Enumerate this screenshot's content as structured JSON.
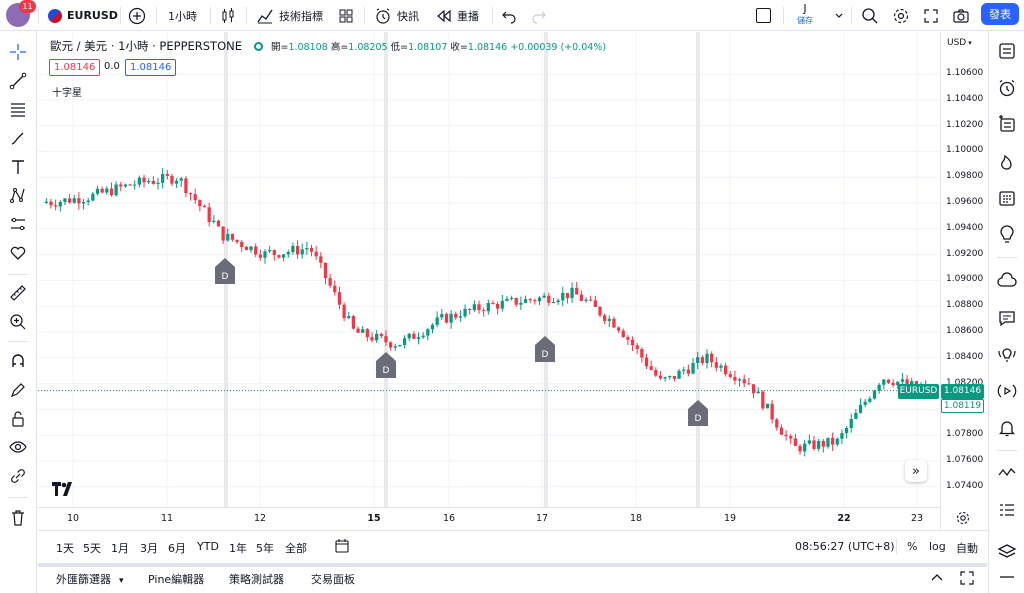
{
  "topbar": {
    "notification_count": "11",
    "symbol": "EURUSD",
    "interval": "1小時",
    "indicators_label": "技術指標",
    "alerts_label": "快訊",
    "replay_label": "重播",
    "layout_name": "J",
    "save_label": "儲存",
    "publish_label": "發表"
  },
  "legend": {
    "title": "歐元 / 美元 · 1小時 · PEPPERSTONE",
    "open_label": "開=",
    "open": "1.08108",
    "high_label": "高=",
    "high": "1.08205",
    "low_label": "低=",
    "low": "1.08107",
    "close_label": "收=",
    "close": "1.08146",
    "change": "+0.00039 (+0.04%)",
    "bid": "1.08146",
    "spread": "0.0",
    "ask": "1.08146",
    "indicator_name": "十字星"
  },
  "axis": {
    "currency": "USD",
    "y_ticks": [
      "1.10600",
      "1.10400",
      "1.10200",
      "1.10000",
      "1.09800",
      "1.09600",
      "1.09400",
      "1.09200",
      "1.09000",
      "1.08800",
      "1.08600",
      "1.08400",
      "1.08200",
      "1.08000",
      "1.07800",
      "1.07600",
      "1.07400"
    ],
    "x_ticks": [
      "10",
      "11",
      "12",
      "15",
      "16",
      "17",
      "18",
      "19",
      "22",
      "23"
    ],
    "x_ticks_bold": [
      "15",
      "22"
    ],
    "last_symbol_tag": "EURUSD",
    "last_price": "1.08146",
    "prev_price": "1.08119"
  },
  "markers": {
    "dividend_label": "D"
  },
  "chart_data": {
    "type": "candlestick",
    "symbol": "EURUSD",
    "interval": "1H",
    "ylim": [
      1.073,
      1.1075
    ],
    "up_color": "#089981",
    "down_color": "#f23645",
    "session_breaks": [
      "11",
      "15",
      "17",
      "18"
    ],
    "close_path_sampled": [
      {
        "x": "10",
        "y": 1.096
      },
      {
        "x": "10.5",
        "y": 1.0965
      },
      {
        "x": "11",
        "y": 1.0975
      },
      {
        "x": "11.5",
        "y": 1.098
      },
      {
        "x": "11 late",
        "y": 1.0935
      },
      {
        "x": "12",
        "y": 1.092
      },
      {
        "x": "12.5",
        "y": 1.0925
      },
      {
        "x": "12 late",
        "y": 1.086
      },
      {
        "x": "15",
        "y": 1.085
      },
      {
        "x": "15.5",
        "y": 1.087
      },
      {
        "x": "16",
        "y": 1.088
      },
      {
        "x": "16.5",
        "y": 1.0885
      },
      {
        "x": "17",
        "y": 1.089
      },
      {
        "x": "17.5",
        "y": 1.0865
      },
      {
        "x": "18",
        "y": 1.082
      },
      {
        "x": "18.5",
        "y": 1.084
      },
      {
        "x": "18 late",
        "y": 1.082
      },
      {
        "x": "19",
        "y": 1.077
      },
      {
        "x": "19.5",
        "y": 1.0775
      },
      {
        "x": "22",
        "y": 1.0825
      },
      {
        "x": "23",
        "y": 1.0815
      }
    ]
  },
  "bottombar": {
    "ranges": [
      "1天",
      "5天",
      "1月",
      "3月",
      "6月",
      "YTD",
      "1年",
      "5年",
      "全部"
    ],
    "time": "08:56:27 (UTC+8)",
    "percent": "%",
    "log": "log",
    "auto": "自動"
  },
  "footer": {
    "tabs": [
      "外匯篩選器",
      "Pine編輯器",
      "策略測試器",
      "交易面板"
    ]
  },
  "colors": {
    "accent": "#2962ff",
    "up": "#089981",
    "down": "#f23645"
  }
}
